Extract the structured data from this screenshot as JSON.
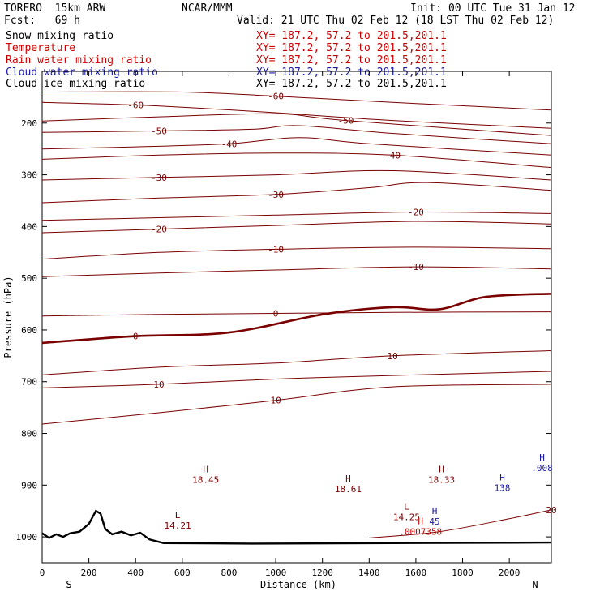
{
  "header": {
    "model": "TORERO  15km ARW",
    "center": "NCAR/MMM",
    "init": "Init: 00 UTC Tue 31 Jan 12",
    "fcst": "Fcst:   69 h",
    "valid": "Valid: 21 UTC Thu 02 Feb 12 (18 LST Thu 02 Feb 12)"
  },
  "fields": [
    {
      "name": "Snow mixing ratio",
      "xy": "XY= 187.2, 57.2 to 201.5,201.1",
      "color": "#000000"
    },
    {
      "name": "Temperature",
      "xy": "XY= 187.2, 57.2 to 201.5,201.1",
      "color": "#cc0000"
    },
    {
      "name": "Rain water mixing ratio",
      "xy": "XY= 187.2, 57.2 to 201.5,201.1",
      "color": "#cc0000"
    },
    {
      "name": "Cloud water mixing ratio",
      "xy": "XY= 187.2, 57.2 to 201.5,201.1",
      "color": "#1a1aa8"
    },
    {
      "name": "Cloud ice mixing ratio",
      "xy": "XY= 187.2, 57.2 to 201.5,201.1",
      "color": "#000000"
    }
  ],
  "chart_data": {
    "type": "contour-cross-section",
    "xlabel": "Distance (km)",
    "ylabel": "Pressure (hPa)",
    "xlim": [
      0,
      2180
    ],
    "ylim": [
      1050,
      100
    ],
    "x_ticks": [
      "0",
      "200",
      "400",
      "600",
      "800",
      "1000",
      "1200",
      "1400",
      "1600",
      "1800",
      "2000"
    ],
    "x_tick_values": [
      0,
      200,
      400,
      600,
      800,
      1000,
      1200,
      1400,
      1600,
      1800,
      2000
    ],
    "y_ticks": [
      "200",
      "300",
      "400",
      "500",
      "600",
      "700",
      "800",
      "900",
      "1000"
    ],
    "y_tick_values": [
      200,
      300,
      400,
      500,
      600,
      700,
      800,
      900,
      1000
    ],
    "left_end": "S",
    "right_end": "N",
    "temperature_contours": [
      {
        "label": "-60",
        "points": [
          [
            0,
            160
          ],
          [
            400,
            165
          ],
          [
            700,
            172
          ],
          [
            1000,
            180
          ],
          [
            1500,
            195
          ],
          [
            2180,
            210
          ]
        ]
      },
      {
        "label": "-60",
        "points": [
          [
            0,
            140
          ],
          [
            600,
            140
          ],
          [
            1000,
            148
          ],
          [
            1500,
            160
          ],
          [
            2180,
            175
          ]
        ]
      },
      {
        "label": "-50",
        "points": [
          [
            0,
            196
          ],
          [
            500,
            188
          ],
          [
            1000,
            182
          ],
          [
            1300,
            195
          ],
          [
            2180,
            224
          ]
        ]
      },
      {
        "label": "-50",
        "points": [
          [
            0,
            218
          ],
          [
            500,
            215
          ],
          [
            900,
            212
          ],
          [
            1100,
            205
          ],
          [
            1500,
            220
          ],
          [
            2180,
            240
          ]
        ]
      },
      {
        "label": "-40",
        "points": [
          [
            0,
            250
          ],
          [
            400,
            246
          ],
          [
            800,
            240
          ],
          [
            1100,
            228
          ],
          [
            1400,
            240
          ],
          [
            2180,
            262
          ]
        ]
      },
      {
        "label": "-40",
        "points": [
          [
            0,
            270
          ],
          [
            500,
            262
          ],
          [
            1000,
            258
          ],
          [
            1500,
            262
          ],
          [
            2180,
            286
          ]
        ]
      },
      {
        "label": "-30",
        "points": [
          [
            0,
            310
          ],
          [
            500,
            305
          ],
          [
            1000,
            300
          ],
          [
            1500,
            292
          ],
          [
            2180,
            310
          ]
        ]
      },
      {
        "label": "-30",
        "points": [
          [
            0,
            354
          ],
          [
            500,
            345
          ],
          [
            1000,
            338
          ],
          [
            1400,
            325
          ],
          [
            1650,
            315
          ],
          [
            2180,
            330
          ]
        ]
      },
      {
        "label": "-20",
        "points": [
          [
            0,
            388
          ],
          [
            500,
            383
          ],
          [
            1000,
            378
          ],
          [
            1600,
            372
          ],
          [
            2180,
            375
          ]
        ]
      },
      {
        "label": "-20",
        "points": [
          [
            0,
            412
          ],
          [
            500,
            405
          ],
          [
            1000,
            398
          ],
          [
            1600,
            390
          ],
          [
            2180,
            395
          ]
        ]
      },
      {
        "label": "-10",
        "points": [
          [
            0,
            463
          ],
          [
            500,
            450
          ],
          [
            1000,
            444
          ],
          [
            1600,
            440
          ],
          [
            2180,
            443
          ]
        ]
      },
      {
        "label": "-10",
        "points": [
          [
            0,
            497
          ],
          [
            500,
            490
          ],
          [
            1000,
            484
          ],
          [
            1600,
            478
          ],
          [
            2180,
            482
          ]
        ]
      },
      {
        "label": "0",
        "points": [
          [
            0,
            625
          ],
          [
            400,
            612
          ],
          [
            800,
            605
          ],
          [
            1200,
            570
          ],
          [
            1500,
            556
          ],
          [
            1700,
            560
          ],
          [
            1900,
            536
          ],
          [
            2180,
            530
          ]
        ]
      },
      {
        "label": "0",
        "points": [
          [
            0,
            573
          ],
          [
            500,
            570
          ],
          [
            1000,
            568
          ],
          [
            1500,
            566
          ],
          [
            2180,
            565
          ]
        ]
      },
      {
        "label": "10",
        "points": [
          [
            0,
            687
          ],
          [
            500,
            672
          ],
          [
            1000,
            664
          ],
          [
            1500,
            650
          ],
          [
            2180,
            640
          ]
        ]
      },
      {
        "label": "10",
        "points": [
          [
            0,
            712
          ],
          [
            500,
            705
          ],
          [
            1000,
            695
          ],
          [
            1500,
            688
          ],
          [
            2180,
            680
          ]
        ]
      },
      {
        "label": "10",
        "points": [
          [
            0,
            782
          ],
          [
            500,
            760
          ],
          [
            1000,
            736
          ],
          [
            1500,
            710
          ],
          [
            2180,
            705
          ]
        ]
      },
      {
        "label": "20",
        "points": [
          [
            1400,
            1002
          ],
          [
            1700,
            990
          ],
          [
            2000,
            965
          ],
          [
            2180,
            948
          ]
        ]
      }
    ],
    "extrema": [
      {
        "type": "H",
        "value": "18.45",
        "x": 700,
        "p": 885,
        "color": "#7a0000"
      },
      {
        "type": "H",
        "value": "18.61",
        "x": 1310,
        "p": 903,
        "color": "#7a0000"
      },
      {
        "type": "H",
        "value": "18.33",
        "x": 1710,
        "p": 885,
        "color": "#7a0000"
      },
      {
        "type": "L",
        "value": "14.21",
        "x": 580,
        "p": 973,
        "color": "#7a0000"
      },
      {
        "type": "L",
        "value": "14.25",
        "x": 1560,
        "p": 957,
        "color": "#7a0000"
      },
      {
        "type": "H",
        "value": ".0007358",
        "x": 1620,
        "p": 985,
        "color": "#cc0000"
      },
      {
        "type": "H",
        "value": "45",
        "x": 1680,
        "p": 965,
        "color": "#1a1aa8"
      },
      {
        "type": "H",
        "value": "138",
        "x": 1970,
        "p": 900,
        "color": "#1a1aa8"
      },
      {
        "type": "H",
        "value": ".008",
        "x": 2140,
        "p": 862,
        "color": "#1a1aa8"
      }
    ],
    "terrain_hpa": [
      [
        0,
        993
      ],
      [
        30,
        1002
      ],
      [
        60,
        995
      ],
      [
        90,
        1000
      ],
      [
        120,
        993
      ],
      [
        160,
        990
      ],
      [
        200,
        975
      ],
      [
        230,
        950
      ],
      [
        250,
        955
      ],
      [
        270,
        985
      ],
      [
        300,
        995
      ],
      [
        340,
        990
      ],
      [
        380,
        997
      ],
      [
        420,
        992
      ],
      [
        460,
        1005
      ],
      [
        520,
        1012
      ],
      [
        900,
        1013
      ],
      [
        1500,
        1012
      ],
      [
        2180,
        1011
      ]
    ]
  }
}
